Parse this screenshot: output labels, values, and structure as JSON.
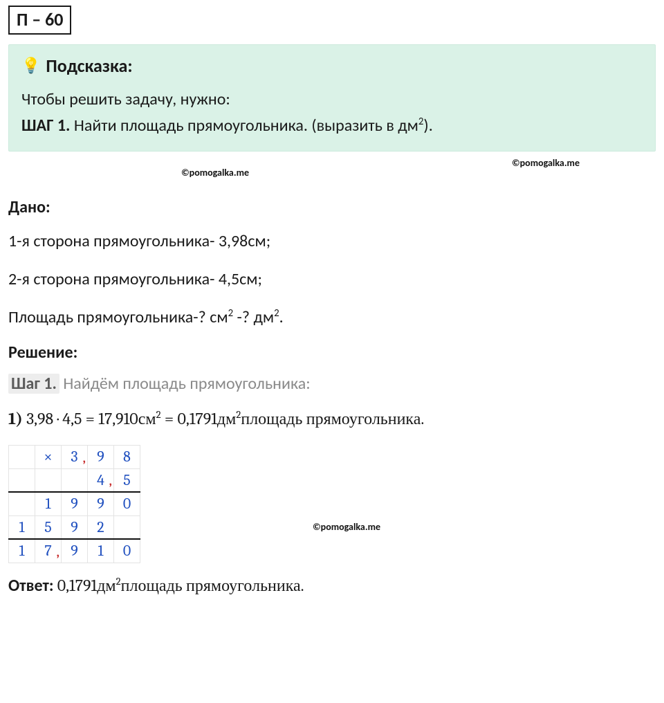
{
  "problem": {
    "number_box": "П – 60"
  },
  "hint": {
    "title": "Подсказка:",
    "intro": "Чтобы решить задачу, нужно:",
    "step_label": "ШАГ 1.",
    "step_text_pre": " Найти площадь прямоугольника. (выразить в дм",
    "step_text_post": ")."
  },
  "watermark": "©pomogalka.me",
  "given": {
    "title": "Дано:",
    "line1": "1-я сторона прямоугольника- 3,98см;",
    "line2": "2-я сторона прямоугольника- 4,5см;",
    "line3_pre": "Площадь прямоугольника-? см",
    "line3_mid": " -? дм",
    "line3_post": "."
  },
  "solution": {
    "title": "Решение:"
  },
  "step1": {
    "tag": "Шаг 1.",
    "text": " Найдём площадь прямоугольника:"
  },
  "calc": {
    "bold": "1)",
    "text_a": " 3,98 · 4,5 = 17,910см",
    "text_b": " = 0,1791дм",
    "text_c": "площадь прямоугольника."
  },
  "mult_table": {
    "border_color": "#e3e3e3",
    "digit_color": "#1f4fbf",
    "comma_color": "#c72a2a",
    "rows": [
      {
        "cells": [
          "",
          "×",
          "3,",
          "9",
          "8"
        ],
        "comma_at": 2
      },
      {
        "cells": [
          "",
          "",
          "",
          "4,",
          "5"
        ],
        "comma_at": 3,
        "line_below": true
      },
      {
        "cells": [
          "",
          "1",
          "9",
          "9",
          "0"
        ]
      },
      {
        "cells": [
          "1",
          "5",
          "9",
          "2",
          ""
        ],
        "line_below": true
      },
      {
        "cells": [
          "1",
          "7,",
          "9",
          "1",
          "0"
        ],
        "comma_at": 1
      }
    ]
  },
  "answer": {
    "label": "Ответ:",
    "text_a": " 0,1791дм",
    "text_b": "площадь прямоугольника."
  }
}
